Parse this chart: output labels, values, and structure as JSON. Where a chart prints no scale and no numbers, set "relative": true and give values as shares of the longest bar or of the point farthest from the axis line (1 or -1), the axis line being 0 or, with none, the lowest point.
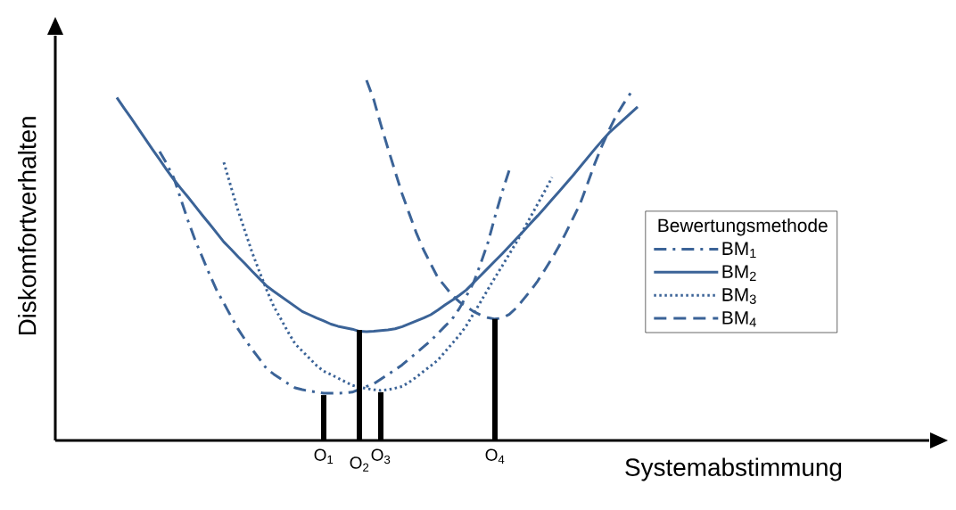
{
  "chart_data": {
    "type": "line",
    "relative": true,
    "xlabel": "Systemabstimmung",
    "ylabel": "Diskomfortverhalten",
    "legend_title": "Bewertungsmethode",
    "legend": "right",
    "tick_labels": "x",
    "categories": [
      null,
      null,
      null,
      null,
      null,
      null,
      null,
      null,
      null,
      null,
      null,
      null,
      null,
      null,
      null,
      null,
      null,
      null,
      null,
      null,
      null,
      null,
      null,
      null,
      null,
      null,
      null,
      null,
      null,
      null,
      "O$_{1}$",
      null,
      null,
      null,
      null,
      "O$_{2}$",
      null,
      null,
      "O$_{3}$",
      null,
      null,
      null,
      null,
      null,
      null,
      null,
      null,
      null,
      null,
      null,
      null,
      null,
      null,
      null,
      "O$_{4}$",
      null,
      null,
      null,
      null,
      null,
      null,
      null,
      null,
      null,
      null,
      null,
      null,
      null,
      null,
      null,
      null,
      null,
      null,
      null,
      null
    ],
    "series": [
      {
        "name": "BM$_{1}$",
        "color": "#3b6397",
        "line_style": "dashdot",
        "values": [
          null,
          null,
          null,
          null,
          null,
          null,
          null,
          0.802,
          0.768,
          0.728,
          0.668,
          0.609,
          0.555,
          0.508,
          0.461,
          0.417,
          0.381,
          0.345,
          0.309,
          0.279,
          0.252,
          0.226,
          0.199,
          0.184,
          0.171,
          0.158,
          0.146,
          0.141,
          0.137,
          0.134,
          0.131,
          0.131,
          0.131,
          0.132,
          0.134,
          0.142,
          0.15,
          0.157,
          0.17,
          0.183,
          0.196,
          0.21,
          0.227,
          0.243,
          0.26,
          0.277,
          0.297,
          0.317,
          0.337,
          0.366,
          0.401,
          0.438,
          0.491,
          0.548,
          0.621,
          0.689,
          0.75,
          null,
          null,
          null,
          null,
          null,
          null,
          null,
          null,
          null,
          null,
          null,
          null,
          null,
          null,
          null,
          null,
          null,
          null
        ]
      },
      {
        "name": "BM$_{2}$",
        "color": "#3b6397",
        "line_style": "solid",
        "values": [
          null,
          0.952,
          0.923,
          0.895,
          0.866,
          0.837,
          0.808,
          0.78,
          0.751,
          0.724,
          0.699,
          0.675,
          0.65,
          0.625,
          0.601,
          0.576,
          0.551,
          0.531,
          0.51,
          0.49,
          0.469,
          0.449,
          0.429,
          0.414,
          0.4,
          0.386,
          0.372,
          0.358,
          0.349,
          0.34,
          0.332,
          0.323,
          0.317,
          0.313,
          0.309,
          0.303,
          0.302,
          0.303,
          0.305,
          0.307,
          0.31,
          0.316,
          0.324,
          0.332,
          0.34,
          0.349,
          0.362,
          0.376,
          0.389,
          0.403,
          0.418,
          0.438,
          0.458,
          0.478,
          0.498,
          0.518,
          0.539,
          0.56,
          0.581,
          0.603,
          0.624,
          0.646,
          0.669,
          0.691,
          0.714,
          0.737,
          0.761,
          0.785,
          0.809,
          0.832,
          0.854,
          0.872,
          0.89,
          0.908,
          0.926
        ]
      },
      {
        "name": "BM$_{3}$",
        "color": "#3b6397",
        "line_style": "dotted",
        "values": [
          null,
          null,
          null,
          null,
          null,
          null,
          null,
          null,
          null,
          null,
          null,
          null,
          null,
          null,
          null,
          null,
          0.772,
          0.704,
          0.638,
          0.579,
          0.52,
          0.468,
          0.418,
          0.372,
          0.337,
          0.301,
          0.268,
          0.248,
          0.228,
          0.208,
          0.192,
          0.183,
          0.173,
          0.163,
          0.153,
          0.148,
          0.144,
          0.141,
          0.139,
          0.141,
          0.145,
          0.15,
          0.162,
          0.176,
          0.192,
          0.207,
          0.223,
          0.246,
          0.269,
          0.292,
          0.319,
          0.352,
          0.385,
          0.419,
          0.452,
          0.484,
          0.517,
          0.55,
          0.585,
          0.621,
          0.657,
          0.693,
          0.73,
          null,
          null,
          null,
          null,
          null,
          null,
          null,
          null,
          null,
          null,
          null,
          null
        ]
      },
      {
        "name": "BM$_{4}$",
        "color": "#3b6397",
        "line_style": "dashed",
        "values": [
          null,
          null,
          null,
          null,
          null,
          null,
          null,
          null,
          null,
          null,
          null,
          null,
          null,
          null,
          null,
          null,
          null,
          null,
          null,
          null,
          null,
          null,
          null,
          null,
          null,
          null,
          null,
          null,
          null,
          null,
          null,
          null,
          null,
          null,
          null,
          null,
          1.0,
          0.947,
          0.877,
          0.811,
          0.747,
          0.684,
          0.629,
          0.575,
          0.529,
          0.49,
          0.452,
          0.428,
          0.403,
          0.385,
          0.372,
          0.358,
          0.348,
          0.341,
          0.337,
          0.34,
          0.35,
          0.368,
          0.392,
          0.416,
          0.443,
          0.474,
          0.506,
          0.54,
          0.579,
          0.619,
          0.66,
          0.714,
          0.769,
          0.818,
          0.862,
          0.902,
          0.934,
          0.964,
          null
        ]
      },
      {
        "type": "bar",
        "color": "#000000",
        "values": [
          null,
          null,
          null,
          null,
          null,
          null,
          null,
          null,
          null,
          null,
          null,
          null,
          null,
          null,
          null,
          null,
          null,
          null,
          null,
          null,
          null,
          null,
          null,
          null,
          null,
          null,
          null,
          null,
          null,
          null,
          0.126,
          null,
          null,
          null,
          null,
          0.307,
          null,
          null,
          0.134,
          null,
          null,
          null,
          null,
          null,
          null,
          null,
          null,
          null,
          null,
          null,
          null,
          null,
          null,
          null,
          0.337,
          null,
          null,
          null,
          null,
          null,
          null,
          null,
          null,
          null,
          null,
          null,
          null,
          null,
          null,
          null,
          null,
          null,
          null,
          null,
          null
        ]
      }
    ]
  }
}
